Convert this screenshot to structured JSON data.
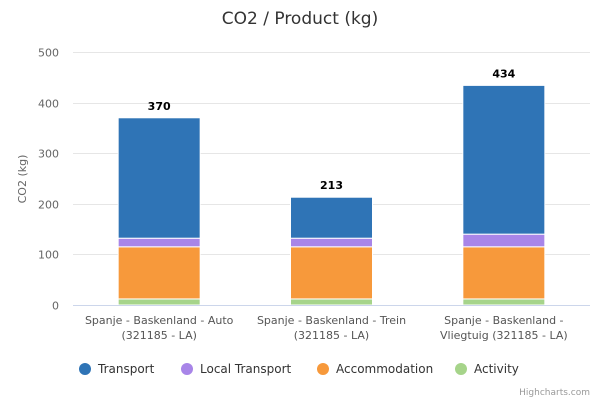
{
  "chart_data": {
    "type": "bar",
    "stacked": true,
    "title": "CO2 / Product (kg)",
    "xlabel": "",
    "ylabel": "CO2 (kg)",
    "ylim": [
      0,
      500
    ],
    "yticks": [
      0,
      100,
      200,
      300,
      400,
      500
    ],
    "categories": [
      [
        "Spanje - Baskenland - Auto",
        "(321185 - LA)"
      ],
      [
        "Spanje - Baskenland - Trein",
        "(321185 - LA)"
      ],
      [
        "Spanje - Baskenland -",
        "Vliegtuig (321185 - LA)"
      ]
    ],
    "series": [
      {
        "name": "Activity",
        "color": "#a6d48a",
        "values": [
          12,
          12,
          12
        ]
      },
      {
        "name": "Accommodation",
        "color": "#f7993b",
        "values": [
          103,
          103,
          103
        ]
      },
      {
        "name": "Local Transport",
        "color": "#a885e8",
        "values": [
          17,
          17,
          25
        ]
      },
      {
        "name": "Transport",
        "color": "#2f74b6",
        "values": [
          238,
          81,
          294
        ]
      }
    ],
    "totals": [
      370,
      213,
      434
    ],
    "legend": [
      "Transport",
      "Local Transport",
      "Accommodation",
      "Activity"
    ],
    "legend_position": "bottom",
    "grid": true
  },
  "credit": "Highcharts.com"
}
